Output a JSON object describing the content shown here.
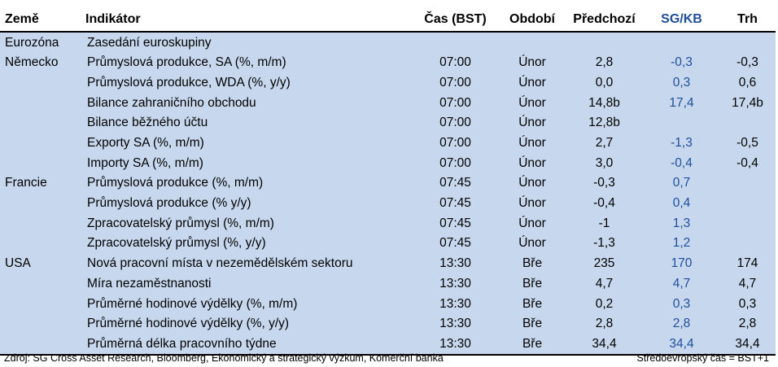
{
  "table": {
    "headers": {
      "country": "Země",
      "indicator": "Indikátor",
      "time": "Čas (BST)",
      "period": "Období",
      "previous": "Předchozí",
      "sg_kb": "SG/KB",
      "market": "Trh"
    },
    "rows": [
      {
        "country": "Eurozóna",
        "indicator": "Zasedání euroskupiny",
        "time": "",
        "period": "",
        "previous": "",
        "sg_kb": "",
        "market": ""
      },
      {
        "country": "Německo",
        "indicator": "Průmyslová produkce, SA (%, m/m)",
        "time": "07:00",
        "period": "Únor",
        "previous": "2,8",
        "sg_kb": "-0,3",
        "market": "-0,3"
      },
      {
        "country": "",
        "indicator": "Průmyslová produkce, WDA (%, y/y)",
        "time": "07:00",
        "period": "Únor",
        "previous": "0,0",
        "sg_kb": "0,3",
        "market": "0,6"
      },
      {
        "country": "",
        "indicator": "Bilance zahraničního obchodu",
        "time": "07:00",
        "period": "Únor",
        "previous": "14,8b",
        "sg_kb": "17,4",
        "market": "17,4b"
      },
      {
        "country": "",
        "indicator": "Bilance běžného účtu",
        "time": "07:00",
        "period": "Únor",
        "previous": "12,8b",
        "sg_kb": "",
        "market": ""
      },
      {
        "country": "",
        "indicator": "Exporty SA (%, m/m)",
        "time": "07:00",
        "period": "Únor",
        "previous": "2,7",
        "sg_kb": "-1,3",
        "market": "-0,5"
      },
      {
        "country": "",
        "indicator": "Importy SA (%, m/m)",
        "time": "07:00",
        "period": "Únor",
        "previous": "3,0",
        "sg_kb": "-0,4",
        "market": "-0,4"
      },
      {
        "country": "Francie",
        "indicator": "Průmyslová produkce (%, m/m)",
        "time": "07:45",
        "period": "Únor",
        "previous": "-0,3",
        "sg_kb": "0,7",
        "market": ""
      },
      {
        "country": "",
        "indicator": "Průmyslová produkce (% y/y)",
        "time": "07:45",
        "period": "Únor",
        "previous": "-0,4",
        "sg_kb": "0,4",
        "market": ""
      },
      {
        "country": "",
        "indicator": "Zpracovatelský průmysl (%, m/m)",
        "time": "07:45",
        "period": "Únor",
        "previous": "-1",
        "sg_kb": "1,3",
        "market": ""
      },
      {
        "country": "",
        "indicator": "Zpracovatelský průmysl (%, y/y)",
        "time": "07:45",
        "period": "Únor",
        "previous": "-1,3",
        "sg_kb": "1,2",
        "market": ""
      },
      {
        "country": "USA",
        "indicator": "Nová pracovní místa v nezemědělském sektoru",
        "time": "13:30",
        "period": "Bře",
        "previous": "235",
        "sg_kb": "170",
        "market": "174"
      },
      {
        "country": "",
        "indicator": "Míra nezaměstnanosti",
        "time": "13:30",
        "period": "Bře",
        "previous": "4,7",
        "sg_kb": "4,7",
        "market": "4,7"
      },
      {
        "country": "",
        "indicator": "Průměrné hodinové výdělky (%, m/m)",
        "time": "13:30",
        "period": "Bře",
        "previous": "0,2",
        "sg_kb": "0,3",
        "market": "0,3"
      },
      {
        "country": "",
        "indicator": "Průměrné hodinové výdělky (%, y/y)",
        "time": "13:30",
        "period": "Bře",
        "previous": "2,8",
        "sg_kb": "2,8",
        "market": "2,8"
      },
      {
        "country": "",
        "indicator": "Průměrná délka pracovního týdne",
        "time": "13:30",
        "period": "Bře",
        "previous": "34,4",
        "sg_kb": "34,4",
        "market": "34,4"
      }
    ]
  },
  "footer": {
    "source": "Zdroj: SG Cross Asset Research, Bloomberg, Ekonomický a strategický výzkum, Komerční banka",
    "note": "Středoevropský čas = BST+1"
  },
  "colors": {
    "table_background": "#c7d8ee",
    "sg_kb_text": "#1f4e9c"
  }
}
